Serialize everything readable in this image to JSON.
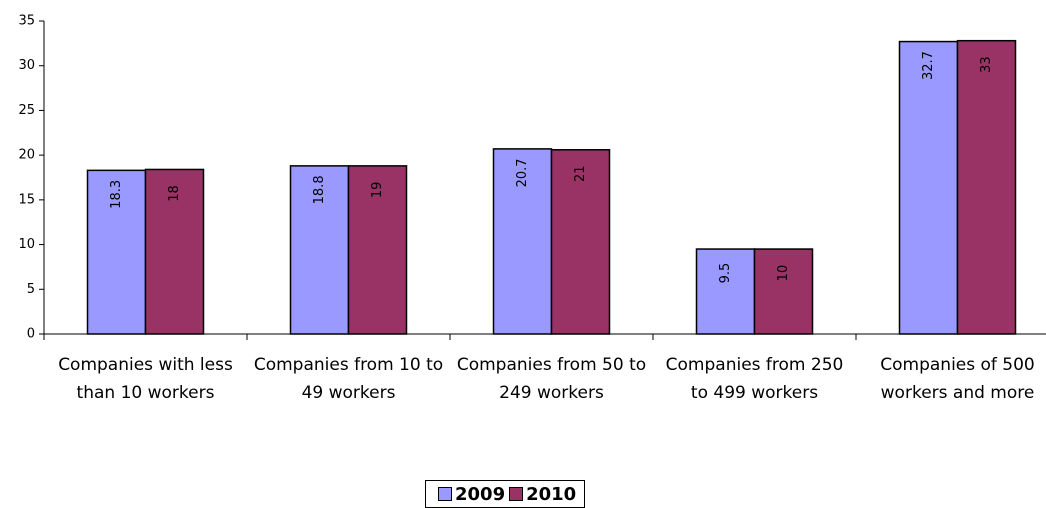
{
  "chart_data": {
    "type": "bar",
    "categories": [
      "Companies with less than 10 workers",
      "Companies from 10 to 49 workers",
      "Companies from 50 to 249 workers",
      "Companies from 250 to 499 workers",
      "Companies of 500 workers and more"
    ],
    "series": [
      {
        "name": "2009",
        "color": "#9999ff",
        "values": [
          18.3,
          18.8,
          20.7,
          9.5,
          32.7
        ]
      },
      {
        "name": "2010",
        "color": "#993366",
        "values": [
          18.4,
          18.8,
          20.6,
          9.5,
          32.8
        ],
        "value_labels": [
          "18",
          "19",
          "21",
          "10",
          "33"
        ]
      }
    ],
    "ylim": [
      0,
      35
    ],
    "yticks": [
      0,
      5,
      10,
      15,
      20,
      25,
      30,
      35
    ],
    "grid": false,
    "legend": "bottom"
  }
}
